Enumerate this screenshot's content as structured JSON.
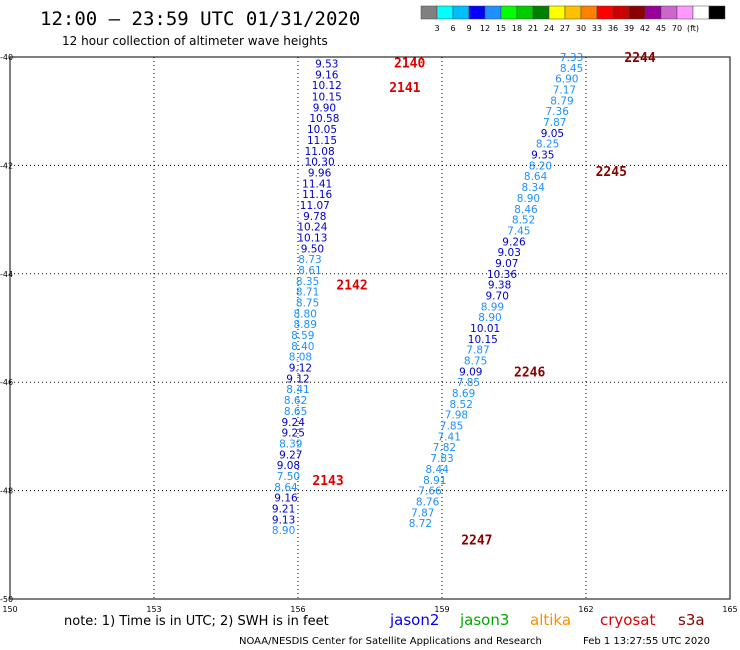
{
  "title": "12:00 – 23:59 UTC 01/31/2020",
  "subtitle": "12 hour collection of altimeter wave heights",
  "colorbar": {
    "colors": [
      "#808080",
      "#00ffff",
      "#00bfff",
      "#0000ff",
      "#1e90ff",
      "#00ff00",
      "#00cc00",
      "#008000",
      "#ffff00",
      "#ffc000",
      "#ff8000",
      "#ff0000",
      "#cc0000",
      "#8b0000",
      "#990099",
      "#cc66cc",
      "#ff99ff",
      "#ffffff",
      "#000000"
    ],
    "labels": [
      "3",
      "6",
      "9",
      "12",
      "15",
      "18",
      "21",
      "24",
      "27",
      "30",
      "33",
      "36",
      "39",
      "42",
      "45",
      "70",
      "(ft)"
    ]
  },
  "legend": {
    "note": "note:  1) Time is in UTC; 2) SWH is in feet",
    "satellites": [
      {
        "name": "jason2",
        "color": "#0000ee"
      },
      {
        "name": "jason3",
        "color": "#00aa00"
      },
      {
        "name": "altika",
        "color": "#ff8c00"
      },
      {
        "name": "cryosat",
        "color": "#dd0000"
      },
      {
        "name": "s3a",
        "color": "#880000"
      }
    ]
  },
  "credit": "NOAA/NESDIS Center for Satellite Applications and Research",
  "timestamp": "Feb  1 13:27:55 UTC 2020",
  "chart_data": {
    "type": "scatter",
    "x_ticks": [
      "150",
      "153",
      "156",
      "159",
      "162",
      "165"
    ],
    "y_ticks": [
      "-40",
      "-42",
      "-44",
      "-46",
      "-48",
      "-50"
    ],
    "xlim": [
      150,
      165
    ],
    "ylim": [
      -50,
      -40
    ],
    "grid": true,
    "series": [
      {
        "name": "cryosat",
        "color": "#dd0000",
        "passes": [
          {
            "label": "2140",
            "lon": 158.0,
            "lat": -40.1
          },
          {
            "label": "2141",
            "lon": 157.9,
            "lat": -40.55
          },
          {
            "label": "2142",
            "lon": 156.8,
            "lat": -44.2
          },
          {
            "label": "2143",
            "lon": 156.3,
            "lat": -47.8
          }
        ],
        "points": [
          {
            "lat": -40.12,
            "lon": 156.6,
            "v": "9.53",
            "c": "#0000cc"
          },
          {
            "lat": -40.32,
            "lon": 156.6,
            "v": "9.16",
            "c": "#0000cc"
          },
          {
            "lat": -40.52,
            "lon": 156.6,
            "v": "10.12",
            "c": "#0000cc"
          },
          {
            "lat": -40.73,
            "lon": 156.6,
            "v": "10.15",
            "c": "#0000cc"
          },
          {
            "lat": -40.93,
            "lon": 156.55,
            "v": "9.90",
            "c": "#0000cc"
          },
          {
            "lat": -41.13,
            "lon": 156.55,
            "v": "10.58",
            "c": "#0000cc"
          },
          {
            "lat": -41.33,
            "lon": 156.5,
            "v": "10.05",
            "c": "#0000cc"
          },
          {
            "lat": -41.53,
            "lon": 156.5,
            "v": "11.15",
            "c": "#0000cc"
          },
          {
            "lat": -41.73,
            "lon": 156.45,
            "v": "11.08",
            "c": "#0000cc"
          },
          {
            "lat": -41.93,
            "lon": 156.45,
            "v": "10.30",
            "c": "#0000cc"
          },
          {
            "lat": -42.13,
            "lon": 156.45,
            "v": "9.96",
            "c": "#0000cc"
          },
          {
            "lat": -42.33,
            "lon": 156.4,
            "v": "11.41",
            "c": "#0000cc"
          },
          {
            "lat": -42.53,
            "lon": 156.4,
            "v": "11.16",
            "c": "#0000cc"
          },
          {
            "lat": -42.73,
            "lon": 156.35,
            "v": "11.07",
            "c": "#0000cc"
          },
          {
            "lat": -42.93,
            "lon": 156.35,
            "v": "9.78",
            "c": "#0000cc"
          },
          {
            "lat": -43.13,
            "lon": 156.3,
            "v": "10.24",
            "c": "#0000cc"
          },
          {
            "lat": -43.33,
            "lon": 156.3,
            "v": "10.13",
            "c": "#0000cc"
          },
          {
            "lat": -43.53,
            "lon": 156.3,
            "v": "9.50",
            "c": "#0000cc"
          },
          {
            "lat": -43.73,
            "lon": 156.25,
            "v": "8.73",
            "c": "#1e90ff"
          },
          {
            "lat": -43.93,
            "lon": 156.25,
            "v": "8.61",
            "c": "#1e90ff"
          },
          {
            "lat": -44.13,
            "lon": 156.2,
            "v": "8.35",
            "c": "#1e90ff"
          },
          {
            "lat": -44.33,
            "lon": 156.2,
            "v": "8.71",
            "c": "#1e90ff"
          },
          {
            "lat": -44.53,
            "lon": 156.2,
            "v": "8.75",
            "c": "#1e90ff"
          },
          {
            "lat": -44.73,
            "lon": 156.15,
            "v": "8.80",
            "c": "#1e90ff"
          },
          {
            "lat": -44.93,
            "lon": 156.15,
            "v": "8.89",
            "c": "#1e90ff"
          },
          {
            "lat": -45.13,
            "lon": 156.1,
            "v": "8.59",
            "c": "#1e90ff"
          },
          {
            "lat": -45.33,
            "lon": 156.1,
            "v": "8.40",
            "c": "#1e90ff"
          },
          {
            "lat": -45.53,
            "lon": 156.05,
            "v": "8.08",
            "c": "#1e90ff"
          },
          {
            "lat": -45.73,
            "lon": 156.05,
            "v": "9.12",
            "c": "#0000cc"
          },
          {
            "lat": -45.93,
            "lon": 156.0,
            "v": "9.12",
            "c": "#0000cc"
          },
          {
            "lat": -46.13,
            "lon": 156.0,
            "v": "8.41",
            "c": "#1e90ff"
          },
          {
            "lat": -46.33,
            "lon": 155.95,
            "v": "8.62",
            "c": "#1e90ff"
          },
          {
            "lat": -46.53,
            "lon": 155.95,
            "v": "8.65",
            "c": "#1e90ff"
          },
          {
            "lat": -46.73,
            "lon": 155.9,
            "v": "9.24",
            "c": "#0000cc"
          },
          {
            "lat": -46.93,
            "lon": 155.9,
            "v": "9.25",
            "c": "#0000cc"
          },
          {
            "lat": -47.13,
            "lon": 155.85,
            "v": "8.39",
            "c": "#1e90ff"
          },
          {
            "lat": -47.33,
            "lon": 155.85,
            "v": "9.27",
            "c": "#0000cc"
          },
          {
            "lat": -47.53,
            "lon": 155.8,
            "v": "9.08",
            "c": "#0000cc"
          },
          {
            "lat": -47.73,
            "lon": 155.8,
            "v": "7.50",
            "c": "#1e90ff"
          },
          {
            "lat": -47.93,
            "lon": 155.75,
            "v": "8.64",
            "c": "#1e90ff"
          },
          {
            "lat": -48.13,
            "lon": 155.75,
            "v": "9.16",
            "c": "#0000cc"
          },
          {
            "lat": -48.33,
            "lon": 155.7,
            "v": "9.21",
            "c": "#0000cc"
          },
          {
            "lat": -48.53,
            "lon": 155.7,
            "v": "9.13",
            "c": "#0000cc"
          },
          {
            "lat": -48.73,
            "lon": 155.7,
            "v": "8.90",
            "c": "#1e90ff"
          }
        ]
      },
      {
        "name": "s3a",
        "color": "#880000",
        "passes": [
          {
            "label": "2244",
            "lon": 162.8,
            "lat": -40.0
          },
          {
            "label": "2245",
            "lon": 162.2,
            "lat": -42.1
          },
          {
            "label": "2246",
            "lon": 160.5,
            "lat": -45.8
          },
          {
            "label": "2247",
            "lon": 159.4,
            "lat": -48.9
          }
        ],
        "points": [
          {
            "lat": -40.0,
            "lon": 161.7,
            "v": "7.33",
            "c": "#1e90ff"
          },
          {
            "lat": -40.2,
            "lon": 161.7,
            "v": "8.45",
            "c": "#1e90ff"
          },
          {
            "lat": -40.4,
            "lon": 161.6,
            "v": "6.90",
            "c": "#1e90ff"
          },
          {
            "lat": -40.6,
            "lon": 161.55,
            "v": "7.17",
            "c": "#1e90ff"
          },
          {
            "lat": -40.8,
            "lon": 161.5,
            "v": "8.79",
            "c": "#1e90ff"
          },
          {
            "lat": -41.0,
            "lon": 161.4,
            "v": "7.36",
            "c": "#1e90ff"
          },
          {
            "lat": -41.2,
            "lon": 161.35,
            "v": "7.87",
            "c": "#1e90ff"
          },
          {
            "lat": -41.4,
            "lon": 161.3,
            "v": "9.05",
            "c": "#0000cc"
          },
          {
            "lat": -41.6,
            "lon": 161.2,
            "v": "8.25",
            "c": "#1e90ff"
          },
          {
            "lat": -41.8,
            "lon": 161.1,
            "v": "9.35",
            "c": "#0000cc"
          },
          {
            "lat": -42.0,
            "lon": 161.05,
            "v": "8.20",
            "c": "#1e90ff"
          },
          {
            "lat": -42.2,
            "lon": 160.95,
            "v": "8.64",
            "c": "#1e90ff"
          },
          {
            "lat": -42.4,
            "lon": 160.9,
            "v": "8.34",
            "c": "#1e90ff"
          },
          {
            "lat": -42.6,
            "lon": 160.8,
            "v": "8.90",
            "c": "#1e90ff"
          },
          {
            "lat": -42.8,
            "lon": 160.75,
            "v": "8.46",
            "c": "#1e90ff"
          },
          {
            "lat": -43.0,
            "lon": 160.7,
            "v": "8.52",
            "c": "#1e90ff"
          },
          {
            "lat": -43.2,
            "lon": 160.6,
            "v": "7.45",
            "c": "#1e90ff"
          },
          {
            "lat": -43.4,
            "lon": 160.5,
            "v": "9.26",
            "c": "#0000cc"
          },
          {
            "lat": -43.6,
            "lon": 160.4,
            "v": "9.03",
            "c": "#0000cc"
          },
          {
            "lat": -43.8,
            "lon": 160.35,
            "v": "9.07",
            "c": "#0000cc"
          },
          {
            "lat": -44.0,
            "lon": 160.25,
            "v": "10.36",
            "c": "#0000cc"
          },
          {
            "lat": -44.2,
            "lon": 160.2,
            "v": "9.38",
            "c": "#0000cc"
          },
          {
            "lat": -44.4,
            "lon": 160.15,
            "v": "9.70",
            "c": "#0000cc"
          },
          {
            "lat": -44.6,
            "lon": 160.05,
            "v": "8.99",
            "c": "#1e90ff"
          },
          {
            "lat": -44.8,
            "lon": 160.0,
            "v": "8.90",
            "c": "#1e90ff"
          },
          {
            "lat": -45.0,
            "lon": 159.9,
            "v": "10.01",
            "c": "#0000cc"
          },
          {
            "lat": -45.2,
            "lon": 159.85,
            "v": "10.15",
            "c": "#0000cc"
          },
          {
            "lat": -45.4,
            "lon": 159.75,
            "v": "7.87",
            "c": "#1e90ff"
          },
          {
            "lat": -45.6,
            "lon": 159.7,
            "v": "8.75",
            "c": "#1e90ff"
          },
          {
            "lat": -45.8,
            "lon": 159.6,
            "v": "9.09",
            "c": "#0000cc"
          },
          {
            "lat": -46.0,
            "lon": 159.55,
            "v": "7.85",
            "c": "#1e90ff"
          },
          {
            "lat": -46.2,
            "lon": 159.45,
            "v": "8.69",
            "c": "#1e90ff"
          },
          {
            "lat": -46.4,
            "lon": 159.4,
            "v": "8.52",
            "c": "#1e90ff"
          },
          {
            "lat": -46.6,
            "lon": 159.3,
            "v": "7.98",
            "c": "#1e90ff"
          },
          {
            "lat": -46.8,
            "lon": 159.2,
            "v": "7.85",
            "c": "#1e90ff"
          },
          {
            "lat": -47.0,
            "lon": 159.15,
            "v": "7.41",
            "c": "#1e90ff"
          },
          {
            "lat": -47.2,
            "lon": 159.05,
            "v": "7.82",
            "c": "#1e90ff"
          },
          {
            "lat": -47.4,
            "lon": 159.0,
            "v": "7.83",
            "c": "#1e90ff"
          },
          {
            "lat": -47.6,
            "lon": 158.9,
            "v": "8.44",
            "c": "#1e90ff"
          },
          {
            "lat": -47.8,
            "lon": 158.85,
            "v": "8.91",
            "c": "#1e90ff"
          },
          {
            "lat": -48.0,
            "lon": 158.75,
            "v": "7.66",
            "c": "#1e90ff"
          },
          {
            "lat": -48.2,
            "lon": 158.7,
            "v": "8.76",
            "c": "#1e90ff"
          },
          {
            "lat": -48.4,
            "lon": 158.6,
            "v": "7.87",
            "c": "#1e90ff"
          },
          {
            "lat": -48.6,
            "lon": 158.55,
            "v": "8.72",
            "c": "#1e90ff"
          }
        ]
      }
    ]
  }
}
